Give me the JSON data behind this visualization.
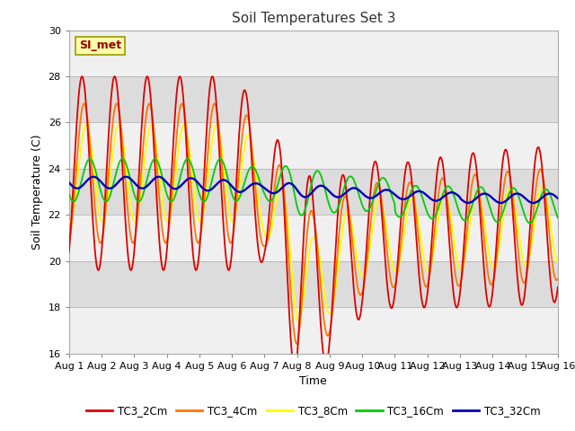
{
  "title": "Soil Temperatures Set 3",
  "xlabel": "Time",
  "ylabel": "Soil Temperature (C)",
  "ylim": [
    16,
    30
  ],
  "yticks": [
    16,
    18,
    20,
    22,
    24,
    26,
    28,
    30
  ],
  "xtick_labels": [
    "Aug 1",
    "Aug 2",
    "Aug 3",
    "Aug 4",
    "Aug 5",
    "Aug 6",
    "Aug 7",
    "Aug 8",
    "Aug 9",
    "Aug 10",
    "Aug 11",
    "Aug 12",
    "Aug 13",
    "Aug 14",
    "Aug 15",
    "Aug 16"
  ],
  "colors": {
    "TC3_2Cm": "#dd0000",
    "TC3_4Cm": "#ff7700",
    "TC3_8Cm": "#ffff00",
    "TC3_16Cm": "#00cc00",
    "TC3_32Cm": "#0000bb"
  },
  "legend_label": "SI_met",
  "fig_bg": "#ffffff",
  "plot_bg_light": "#f0f0f0",
  "plot_bg_dark": "#dcdcdc",
  "grid_color": "#ffffff"
}
